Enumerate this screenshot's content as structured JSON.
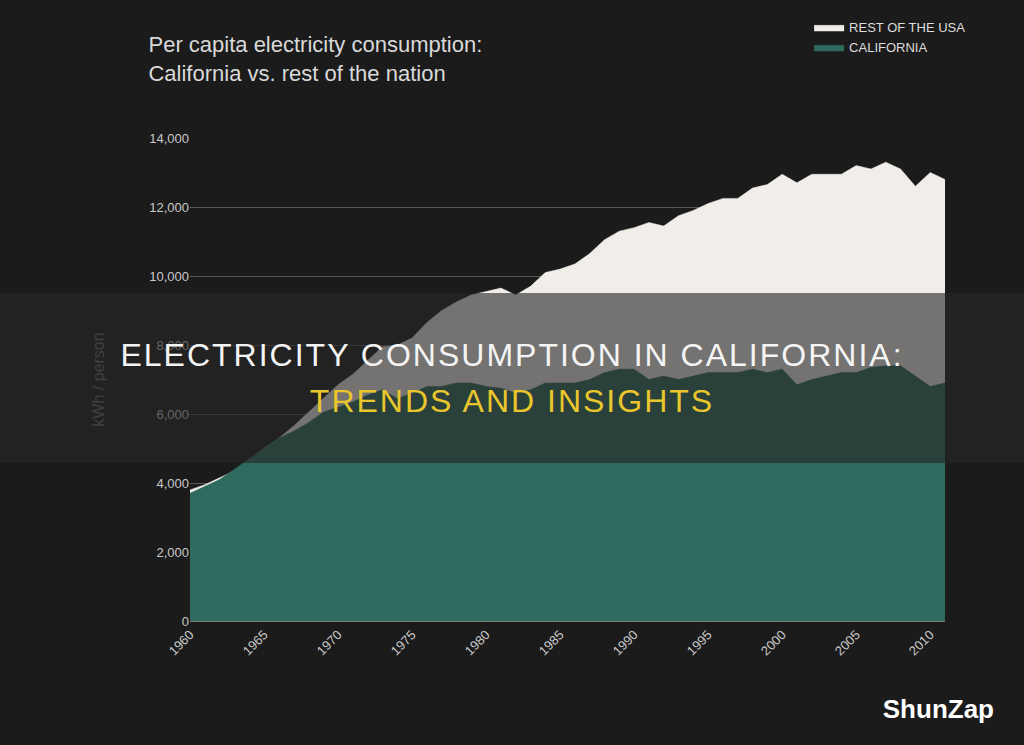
{
  "chart_data": {
    "type": "area",
    "title": "Per capita electricity consumption:\nCalifornia vs. rest of the nation",
    "y_label": "kWh / person",
    "x": [
      1960,
      1961,
      1962,
      1963,
      1964,
      1965,
      1966,
      1967,
      1968,
      1969,
      1970,
      1971,
      1972,
      1973,
      1974,
      1975,
      1976,
      1977,
      1978,
      1979,
      1980,
      1981,
      1982,
      1983,
      1984,
      1985,
      1986,
      1987,
      1988,
      1989,
      1990,
      1991,
      1992,
      1993,
      1994,
      1995,
      1996,
      1997,
      1998,
      1999,
      2000,
      2001,
      2002,
      2003,
      2004,
      2005,
      2006,
      2007,
      2008,
      2009,
      2010,
      2011
    ],
    "series": [
      {
        "name": "REST OF THE USA",
        "color": "#f1eee9",
        "values": [
          3800,
          3950,
          4150,
          4350,
          4650,
          5000,
          5300,
          5650,
          6050,
          6450,
          6850,
          7150,
          7550,
          7950,
          8000,
          8200,
          8650,
          9000,
          9250,
          9450,
          9550,
          9650,
          9450,
          9700,
          10100,
          10200,
          10350,
          10650,
          11050,
          11300,
          11400,
          11550,
          11450,
          11750,
          11900,
          12100,
          12250,
          12250,
          12550,
          12650,
          12950,
          12700,
          12950,
          12950,
          12950,
          13200,
          13100,
          13300,
          13100,
          12600,
          13000,
          12800
        ]
      },
      {
        "name": "CALIFORNIA",
        "color": "#2e6a5d",
        "values": [
          3700,
          3900,
          4100,
          4400,
          4700,
          5000,
          5300,
          5500,
          5750,
          6050,
          6200,
          6350,
          6550,
          6700,
          6450,
          6600,
          6800,
          6800,
          6900,
          6900,
          6800,
          6750,
          6600,
          6700,
          6900,
          6900,
          6900,
          7000,
          7200,
          7300,
          7300,
          7000,
          7100,
          7000,
          7100,
          7200,
          7200,
          7200,
          7300,
          7200,
          7300,
          6850,
          7000,
          7100,
          7200,
          7200,
          7350,
          7400,
          7400,
          7100,
          6800,
          6900
        ]
      }
    ],
    "xlim": [
      1960,
      2011
    ],
    "xticks": [
      1960,
      1965,
      1970,
      1975,
      1980,
      1985,
      1990,
      1995,
      2000,
      2005,
      2010
    ],
    "ylim": [
      0,
      14000
    ],
    "yticks": [
      0,
      {
        "value": 2000,
        "label": "2,000"
      },
      {
        "value": 4000,
        "label": "4,000"
      },
      {
        "value": 6000,
        "label": "6,000"
      },
      {
        "value": 8000,
        "label": "8,000"
      },
      {
        "value": 10000,
        "label": "10,000"
      },
      {
        "value": 12000,
        "label": "12,000"
      },
      {
        "value": 14000,
        "label": "14,000"
      }
    ],
    "grid": true,
    "legend": "top right",
    "banner": [
      "ELECTRICITY CONSUMPTION IN CALIFORNIA:",
      "TRENDS AND INSIGHTS"
    ],
    "watermark": "ShunZap"
  }
}
